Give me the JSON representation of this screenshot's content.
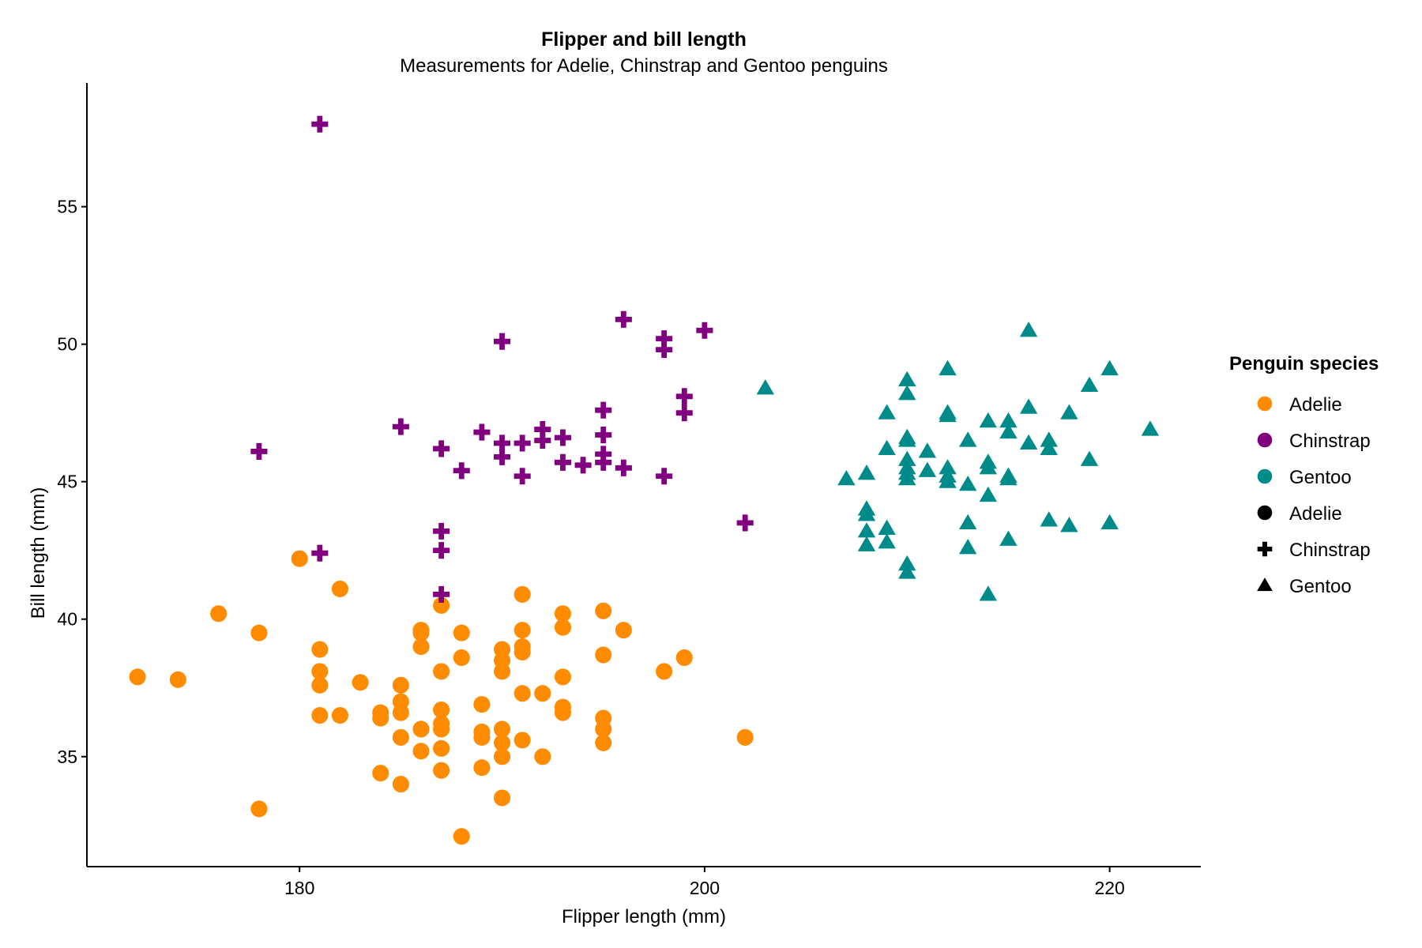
{
  "chart_data": {
    "type": "scatter",
    "title": "Flipper and bill length",
    "subtitle": "Measurements for Adelie, Chinstrap and Gentoo penguins",
    "xlabel": "Flipper length (mm)",
    "ylabel": "Bill length (mm)",
    "xlim": [
      169.5,
      224.5
    ],
    "ylim": [
      31,
      59.5
    ],
    "xticks": [
      180,
      200,
      220
    ],
    "yticks": [
      35,
      40,
      45,
      50,
      55
    ],
    "grid": false,
    "legend": {
      "title": "Penguin species",
      "position": "right",
      "color_entries": [
        {
          "label": "Adelie",
          "color": "#ff8c00"
        },
        {
          "label": "Chinstrap",
          "color": "#800080"
        },
        {
          "label": "Gentoo",
          "color": "#008b8b"
        }
      ],
      "shape_entries": [
        {
          "label": "Adelie",
          "shape": "circle"
        },
        {
          "label": "Chinstrap",
          "shape": "cross"
        },
        {
          "label": "Gentoo",
          "shape": "triangle"
        }
      ]
    },
    "series": [
      {
        "name": "Adelie",
        "color": "#ff8c00",
        "shape": "circle",
        "points": [
          [
            172,
            37.9
          ],
          [
            174,
            37.8
          ],
          [
            176,
            40.2
          ],
          [
            178,
            39.5
          ],
          [
            178,
            33.1
          ],
          [
            180,
            42.2
          ],
          [
            181,
            38.9
          ],
          [
            181,
            38.1
          ],
          [
            181,
            37.6
          ],
          [
            181,
            36.5
          ],
          [
            182,
            41.1
          ],
          [
            182,
            36.5
          ],
          [
            183,
            37.7
          ],
          [
            184,
            36.6
          ],
          [
            184,
            36.4
          ],
          [
            184,
            34.4
          ],
          [
            185,
            37.6
          ],
          [
            185,
            37.0
          ],
          [
            185,
            36.6
          ],
          [
            185,
            35.7
          ],
          [
            185,
            34.0
          ],
          [
            186,
            39.6
          ],
          [
            186,
            39.5
          ],
          [
            186,
            39.0
          ],
          [
            186,
            36.0
          ],
          [
            186,
            35.2
          ],
          [
            187,
            40.5
          ],
          [
            187,
            38.1
          ],
          [
            187,
            36.7
          ],
          [
            187,
            36.2
          ],
          [
            187,
            36.0
          ],
          [
            187,
            35.3
          ],
          [
            187,
            34.5
          ],
          [
            188,
            39.5
          ],
          [
            188,
            38.6
          ],
          [
            188,
            32.1
          ],
          [
            189,
            36.9
          ],
          [
            189,
            35.9
          ],
          [
            189,
            35.7
          ],
          [
            189,
            34.6
          ],
          [
            190,
            38.9
          ],
          [
            190,
            38.5
          ],
          [
            190,
            38.1
          ],
          [
            190,
            36.0
          ],
          [
            190,
            35.5
          ],
          [
            190,
            35.0
          ],
          [
            190,
            33.5
          ],
          [
            191,
            40.9
          ],
          [
            191,
            39.6
          ],
          [
            191,
            39.0
          ],
          [
            191,
            38.8
          ],
          [
            191,
            37.3
          ],
          [
            191,
            35.6
          ],
          [
            192,
            37.3
          ],
          [
            192,
            35.0
          ],
          [
            193,
            40.2
          ],
          [
            193,
            39.7
          ],
          [
            193,
            37.9
          ],
          [
            193,
            36.8
          ],
          [
            193,
            36.6
          ],
          [
            195,
            40.3
          ],
          [
            195,
            38.7
          ],
          [
            195,
            36.4
          ],
          [
            195,
            36.0
          ],
          [
            195,
            35.5
          ],
          [
            196,
            39.6
          ],
          [
            198,
            38.1
          ],
          [
            199,
            38.6
          ],
          [
            202,
            35.7
          ]
        ]
      },
      {
        "name": "Chinstrap",
        "color": "#800080",
        "shape": "cross",
        "points": [
          [
            178,
            46.1
          ],
          [
            181,
            58.0
          ],
          [
            181,
            42.4
          ],
          [
            185,
            47.0
          ],
          [
            187,
            46.2
          ],
          [
            187,
            43.2
          ],
          [
            187,
            42.5
          ],
          [
            187,
            40.9
          ],
          [
            188,
            45.4
          ],
          [
            189,
            46.8
          ],
          [
            190,
            50.1
          ],
          [
            190,
            46.4
          ],
          [
            190,
            45.9
          ],
          [
            191,
            46.4
          ],
          [
            191,
            45.2
          ],
          [
            192,
            46.9
          ],
          [
            192,
            46.5
          ],
          [
            193,
            46.6
          ],
          [
            193,
            45.7
          ],
          [
            194,
            45.6
          ],
          [
            195,
            47.6
          ],
          [
            195,
            46.7
          ],
          [
            195,
            46.0
          ],
          [
            195,
            45.7
          ],
          [
            196,
            50.9
          ],
          [
            196,
            45.5
          ],
          [
            198,
            50.2
          ],
          [
            198,
            49.8
          ],
          [
            198,
            45.2
          ],
          [
            199,
            48.1
          ],
          [
            199,
            47.5
          ],
          [
            200,
            50.5
          ],
          [
            202,
            43.5
          ]
        ]
      },
      {
        "name": "Gentoo",
        "color": "#008b8b",
        "shape": "triangle",
        "points": [
          [
            203,
            48.4
          ],
          [
            207,
            45.1
          ],
          [
            208,
            45.3
          ],
          [
            208,
            44.0
          ],
          [
            208,
            43.8
          ],
          [
            208,
            43.2
          ],
          [
            208,
            42.7
          ],
          [
            209,
            47.5
          ],
          [
            209,
            46.2
          ],
          [
            209,
            43.3
          ],
          [
            209,
            42.8
          ],
          [
            210,
            48.7
          ],
          [
            210,
            48.2
          ],
          [
            210,
            46.6
          ],
          [
            210,
            46.5
          ],
          [
            210,
            45.8
          ],
          [
            210,
            45.5
          ],
          [
            210,
            45.3
          ],
          [
            210,
            45.1
          ],
          [
            210,
            42.0
          ],
          [
            210,
            41.7
          ],
          [
            211,
            46.1
          ],
          [
            211,
            45.4
          ],
          [
            212,
            49.1
          ],
          [
            212,
            47.5
          ],
          [
            212,
            47.4
          ],
          [
            212,
            45.5
          ],
          [
            212,
            45.2
          ],
          [
            212,
            45.0
          ],
          [
            213,
            46.5
          ],
          [
            213,
            44.9
          ],
          [
            213,
            43.5
          ],
          [
            213,
            42.6
          ],
          [
            214,
            47.2
          ],
          [
            214,
            45.7
          ],
          [
            214,
            45.5
          ],
          [
            214,
            44.5
          ],
          [
            214,
            40.9
          ],
          [
            215,
            47.2
          ],
          [
            215,
            46.8
          ],
          [
            215,
            45.2
          ],
          [
            215,
            45.1
          ],
          [
            215,
            42.9
          ],
          [
            216,
            50.5
          ],
          [
            216,
            47.7
          ],
          [
            216,
            46.4
          ],
          [
            217,
            46.5
          ],
          [
            217,
            46.2
          ],
          [
            217,
            43.6
          ],
          [
            218,
            47.5
          ],
          [
            218,
            43.4
          ],
          [
            219,
            48.5
          ],
          [
            219,
            45.8
          ],
          [
            220,
            49.1
          ],
          [
            220,
            43.5
          ],
          [
            222,
            46.9
          ]
        ]
      }
    ]
  }
}
